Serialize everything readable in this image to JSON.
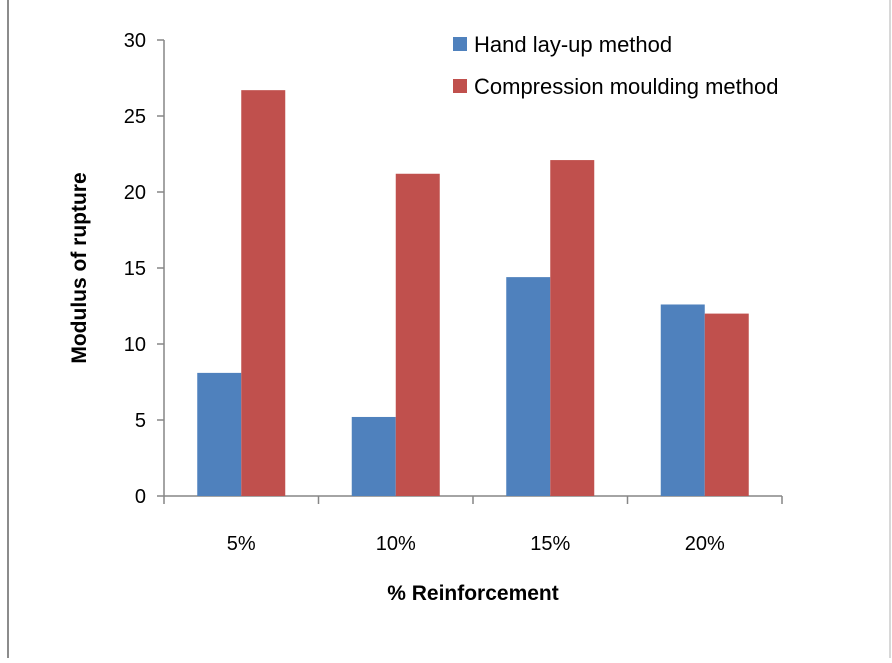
{
  "chart_data": {
    "type": "bar",
    "categories": [
      "5%",
      "10%",
      "15%",
      "20%"
    ],
    "series": [
      {
        "name": "Hand lay-up method",
        "values": [
          8.1,
          5.2,
          14.4,
          12.6
        ],
        "color": "#4F81BD"
      },
      {
        "name": "Compression moulding method",
        "values": [
          26.7,
          21.2,
          22.1,
          12.0
        ],
        "color": "#C0504D"
      }
    ],
    "title": "",
    "xlabel": "% Reinforcement",
    "ylabel": "Modulus of rupture",
    "ylim": [
      0,
      30
    ],
    "yticks": [
      0,
      5,
      10,
      15,
      20,
      25,
      30
    ],
    "grid": false,
    "legend_position": "top-right"
  }
}
